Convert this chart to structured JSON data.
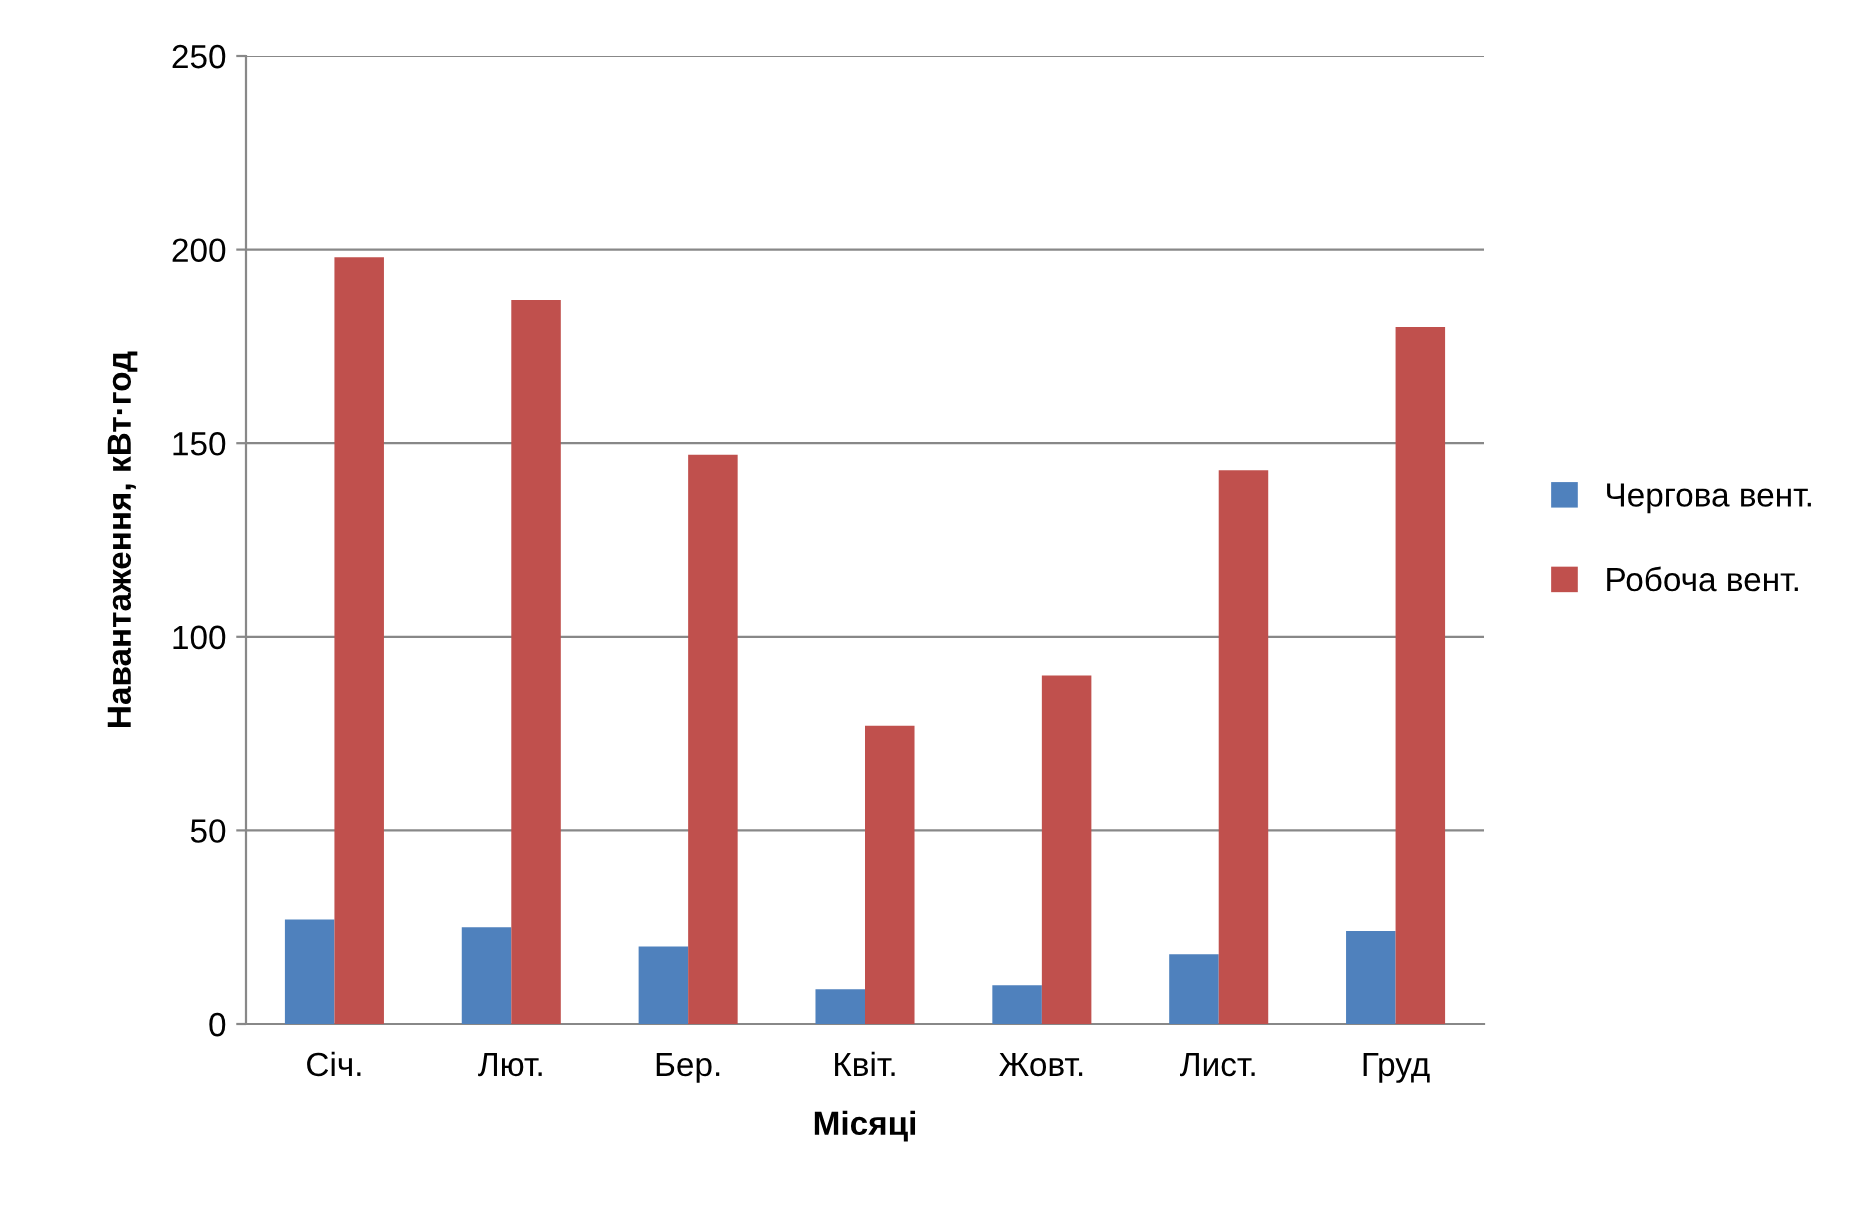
{
  "chart_data": {
    "type": "bar",
    "xlabel": "Місяці",
    "ylabel": "Навантаження, кВт·год",
    "categories": [
      "Січ.",
      "Лют.",
      "Бер.",
      "Квіт.",
      "Жовт.",
      "Лист.",
      "Груд"
    ],
    "series": [
      {
        "name": "Чергова вент.",
        "color": "#4f81bd",
        "values": [
          27,
          25,
          20,
          9,
          10,
          18,
          24
        ]
      },
      {
        "name": "Робоча вент.",
        "color": "#c0504d",
        "values": [
          198,
          187,
          147,
          77,
          90,
          143,
          180
        ]
      }
    ],
    "ylim": [
      0,
      250
    ],
    "yticks": [
      0,
      50,
      100,
      150,
      200,
      250
    ],
    "grid": "y",
    "legend": "right"
  }
}
